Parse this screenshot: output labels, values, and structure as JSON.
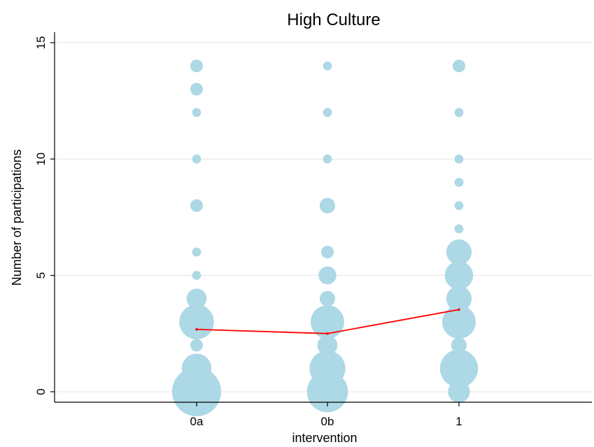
{
  "chart_data": {
    "type": "scatter",
    "title": "High Culture",
    "xlabel": "intervention",
    "ylabel": "Number of participations",
    "categories": [
      "0a",
      "0b",
      "1"
    ],
    "ylim": [
      -0.4,
      15.4
    ],
    "yticks": [
      0,
      5,
      10,
      15
    ],
    "grid": true,
    "colors": {
      "bubble": "#add8e6",
      "mean_line": "#ff0000"
    },
    "bubble_series": {
      "name": "",
      "points": [
        {
          "x": "0a",
          "y": 14,
          "weight": 2
        },
        {
          "x": "0a",
          "y": 13,
          "weight": 2
        },
        {
          "x": "0a",
          "y": 12,
          "weight": 1
        },
        {
          "x": "0a",
          "y": 10,
          "weight": 1
        },
        {
          "x": "0a",
          "y": 8,
          "weight": 2
        },
        {
          "x": "0a",
          "y": 6,
          "weight": 1
        },
        {
          "x": "0a",
          "y": 5,
          "weight": 1
        },
        {
          "x": "0a",
          "y": 4,
          "weight": 5
        },
        {
          "x": "0a",
          "y": 3,
          "weight": 15
        },
        {
          "x": "0a",
          "y": 2,
          "weight": 2
        },
        {
          "x": "0a",
          "y": 1,
          "weight": 11
        },
        {
          "x": "0a",
          "y": 0,
          "weight": 30
        },
        {
          "x": "0b",
          "y": 14,
          "weight": 1
        },
        {
          "x": "0b",
          "y": 12,
          "weight": 1
        },
        {
          "x": "0b",
          "y": 10,
          "weight": 1
        },
        {
          "x": "0b",
          "y": 8,
          "weight": 3
        },
        {
          "x": "0b",
          "y": 6,
          "weight": 2
        },
        {
          "x": "0b",
          "y": 5,
          "weight": 4
        },
        {
          "x": "0b",
          "y": 4,
          "weight": 3
        },
        {
          "x": "0b",
          "y": 3,
          "weight": 14
        },
        {
          "x": "0b",
          "y": 2,
          "weight": 5
        },
        {
          "x": "0b",
          "y": 1,
          "weight": 16
        },
        {
          "x": "0b",
          "y": 0,
          "weight": 21
        },
        {
          "x": "1",
          "y": 14,
          "weight": 2
        },
        {
          "x": "1",
          "y": 12,
          "weight": 1
        },
        {
          "x": "1",
          "y": 10,
          "weight": 1
        },
        {
          "x": "1",
          "y": 9,
          "weight": 1
        },
        {
          "x": "1",
          "y": 8,
          "weight": 1
        },
        {
          "x": "1",
          "y": 7,
          "weight": 1
        },
        {
          "x": "1",
          "y": 6,
          "weight": 8
        },
        {
          "x": "1",
          "y": 5,
          "weight": 10
        },
        {
          "x": "1",
          "y": 4,
          "weight": 8
        },
        {
          "x": "1",
          "y": 3,
          "weight": 14
        },
        {
          "x": "1",
          "y": 2,
          "weight": 3
        },
        {
          "x": "1",
          "y": 1,
          "weight": 18
        },
        {
          "x": "1",
          "y": 0,
          "weight": 6
        }
      ]
    },
    "mean_series": {
      "name": "",
      "values": [
        2.68,
        2.5,
        3.53
      ]
    }
  }
}
